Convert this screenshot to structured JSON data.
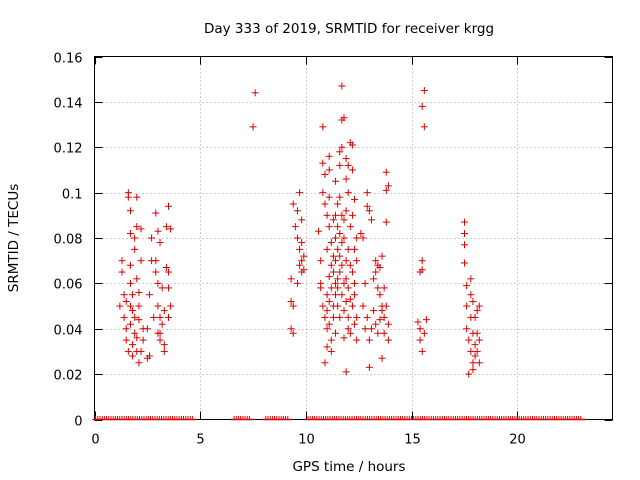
{
  "chart_data": {
    "type": "scatter",
    "title": "Day 333 of 2019, SRMTID for receiver krgg",
    "xlabel": "GPS time / hours",
    "ylabel": "SRMTID / TECUs",
    "xlim": [
      0,
      24.5
    ],
    "ylim": [
      0,
      0.16
    ],
    "grid": true,
    "marker": "+",
    "marker_color": "#dd0000",
    "xticks": [
      0,
      5,
      10,
      15,
      20
    ],
    "xtick_labels": [
      "0",
      "5",
      "10",
      "15",
      "20"
    ],
    "yticks": [
      0,
      0.02,
      0.04,
      0.06,
      0.08,
      0.1,
      0.12,
      0.14,
      0.16
    ],
    "ytick_labels": [
      "0",
      "0.02",
      "0.04",
      "0.06",
      "0.08",
      "0.1",
      "0.12",
      "0.14",
      "0.16"
    ],
    "series": [
      {
        "name": "SRMTID",
        "points": [
          [
            1.2,
            0.05
          ],
          [
            1.3,
            0.07
          ],
          [
            1.3,
            0.065
          ],
          [
            1.4,
            0.055
          ],
          [
            1.4,
            0.045
          ],
          [
            1.5,
            0.052
          ],
          [
            1.5,
            0.04
          ],
          [
            1.5,
            0.035
          ],
          [
            1.6,
            0.03
          ],
          [
            1.6,
            0.1
          ],
          [
            1.6,
            0.098
          ],
          [
            1.7,
            0.092
          ],
          [
            1.7,
            0.082
          ],
          [
            1.7,
            0.068
          ],
          [
            1.7,
            0.06
          ],
          [
            1.7,
            0.05
          ],
          [
            1.7,
            0.042
          ],
          [
            1.8,
            0.033
          ],
          [
            1.8,
            0.028
          ],
          [
            1.8,
            0.055
          ],
          [
            1.8,
            0.048
          ],
          [
            1.9,
            0.045
          ],
          [
            1.9,
            0.038
          ],
          [
            1.9,
            0.075
          ],
          [
            1.9,
            0.08
          ],
          [
            2.0,
            0.03
          ],
          [
            2.0,
            0.036
          ],
          [
            2.0,
            0.098
          ],
          [
            2.0,
            0.085
          ],
          [
            2.0,
            0.062
          ],
          [
            2.1,
            0.044
          ],
          [
            2.1,
            0.05
          ],
          [
            2.1,
            0.056
          ],
          [
            2.1,
            0.025
          ],
          [
            2.2,
            0.03
          ],
          [
            2.2,
            0.084
          ],
          [
            2.2,
            0.07
          ],
          [
            2.3,
            0.035
          ],
          [
            2.3,
            0.04
          ],
          [
            2.5,
            0.027
          ],
          [
            2.5,
            0.04
          ],
          [
            2.6,
            0.028
          ],
          [
            2.6,
            0.055
          ],
          [
            2.7,
            0.08
          ],
          [
            2.7,
            0.07
          ],
          [
            2.8,
            0.045
          ],
          [
            2.9,
            0.091
          ],
          [
            2.9,
            0.07
          ],
          [
            2.9,
            0.065
          ],
          [
            3.0,
            0.083
          ],
          [
            3.0,
            0.06
          ],
          [
            3.0,
            0.05
          ],
          [
            3.0,
            0.038
          ],
          [
            3.1,
            0.038
          ],
          [
            3.1,
            0.035
          ],
          [
            3.1,
            0.045
          ],
          [
            3.1,
            0.078
          ],
          [
            3.2,
            0.058
          ],
          [
            3.2,
            0.042
          ],
          [
            3.3,
            0.033
          ],
          [
            3.3,
            0.03
          ],
          [
            3.3,
            0.048
          ],
          [
            3.4,
            0.085
          ],
          [
            3.4,
            0.067
          ],
          [
            3.5,
            0.094
          ],
          [
            3.5,
            0.065
          ],
          [
            3.5,
            0.058
          ],
          [
            3.5,
            0.045
          ],
          [
            3.6,
            0.084
          ],
          [
            3.6,
            0.05
          ],
          [
            7.5,
            0.129
          ],
          [
            7.6,
            0.144
          ],
          [
            9.3,
            0.062
          ],
          [
            9.3,
            0.052
          ],
          [
            9.3,
            0.04
          ],
          [
            9.4,
            0.095
          ],
          [
            9.4,
            0.05
          ],
          [
            9.4,
            0.038
          ],
          [
            9.5,
            0.085
          ],
          [
            9.6,
            0.092
          ],
          [
            9.6,
            0.08
          ],
          [
            9.6,
            0.06
          ],
          [
            9.7,
            0.1
          ],
          [
            9.7,
            0.075
          ],
          [
            9.7,
            0.068
          ],
          [
            9.8,
            0.088
          ],
          [
            9.8,
            0.078
          ],
          [
            9.8,
            0.07
          ],
          [
            9.8,
            0.065
          ],
          [
            9.9,
            0.072
          ],
          [
            9.9,
            0.066
          ],
          [
            10.6,
            0.083
          ],
          [
            10.7,
            0.07
          ],
          [
            10.7,
            0.06
          ],
          [
            10.7,
            0.058
          ],
          [
            10.8,
            0.113
          ],
          [
            10.8,
            0.129
          ],
          [
            10.8,
            0.1
          ],
          [
            10.8,
            0.05
          ],
          [
            10.9,
            0.108
          ],
          [
            10.9,
            0.095
          ],
          [
            10.9,
            0.025
          ],
          [
            10.9,
            0.045
          ],
          [
            11.0,
            0.09
          ],
          [
            11.0,
            0.075
          ],
          [
            11.0,
            0.055
          ],
          [
            11.0,
            0.048
          ],
          [
            11.0,
            0.032
          ],
          [
            11.0,
            0.04
          ],
          [
            11.1,
            0.116
          ],
          [
            11.1,
            0.11
          ],
          [
            11.1,
            0.098
          ],
          [
            11.1,
            0.085
          ],
          [
            11.1,
            0.063
          ],
          [
            11.1,
            0.052
          ],
          [
            11.1,
            0.042
          ],
          [
            11.2,
            0.078
          ],
          [
            11.2,
            0.068
          ],
          [
            11.2,
            0.035
          ],
          [
            11.2,
            0.03
          ],
          [
            11.2,
            0.058
          ],
          [
            11.3,
            0.088
          ],
          [
            11.3,
            0.072
          ],
          [
            11.3,
            0.065
          ],
          [
            11.3,
            0.05
          ],
          [
            11.3,
            0.045
          ],
          [
            11.4,
            0.105
          ],
          [
            11.4,
            0.09
          ],
          [
            11.4,
            0.08
          ],
          [
            11.4,
            0.07
          ],
          [
            11.4,
            0.06
          ],
          [
            11.4,
            0.055
          ],
          [
            11.4,
            0.038
          ],
          [
            11.5,
            0.095
          ],
          [
            11.5,
            0.085
          ],
          [
            11.5,
            0.075
          ],
          [
            11.5,
            0.062
          ],
          [
            11.5,
            0.058
          ],
          [
            11.5,
            0.05
          ],
          [
            11.6,
            0.118
          ],
          [
            11.6,
            0.112
          ],
          [
            11.6,
            0.098
          ],
          [
            11.6,
            0.082
          ],
          [
            11.6,
            0.072
          ],
          [
            11.6,
            0.065
          ],
          [
            11.6,
            0.045
          ],
          [
            11.7,
            0.132
          ],
          [
            11.7,
            0.147
          ],
          [
            11.7,
            0.12
          ],
          [
            11.7,
            0.09
          ],
          [
            11.7,
            0.078
          ],
          [
            11.7,
            0.068
          ],
          [
            11.7,
            0.055
          ],
          [
            11.8,
            0.133
          ],
          [
            11.8,
            0.088
          ],
          [
            11.8,
            0.08
          ],
          [
            11.8,
            0.06
          ],
          [
            11.8,
            0.048
          ],
          [
            11.8,
            0.036
          ],
          [
            11.9,
            0.115
          ],
          [
            11.9,
            0.106
          ],
          [
            11.9,
            0.092
          ],
          [
            11.9,
            0.07
          ],
          [
            11.9,
            0.062
          ],
          [
            11.9,
            0.052
          ],
          [
            11.9,
            0.021
          ],
          [
            12.0,
            0.112
          ],
          [
            12.0,
            0.1
          ],
          [
            12.0,
            0.075
          ],
          [
            12.0,
            0.058
          ],
          [
            12.0,
            0.045
          ],
          [
            12.0,
            0.04
          ],
          [
            12.1,
            0.122
          ],
          [
            12.1,
            0.085
          ],
          [
            12.1,
            0.068
          ],
          [
            12.1,
            0.053
          ],
          [
            12.1,
            0.038
          ],
          [
            12.2,
            0.121
          ],
          [
            12.2,
            0.11
          ],
          [
            12.2,
            0.09
          ],
          [
            12.2,
            0.065
          ],
          [
            12.2,
            0.05
          ],
          [
            12.3,
            0.097
          ],
          [
            12.3,
            0.075
          ],
          [
            12.3,
            0.06
          ],
          [
            12.3,
            0.055
          ],
          [
            12.3,
            0.042
          ],
          [
            12.4,
            0.08
          ],
          [
            12.4,
            0.07
          ],
          [
            12.4,
            0.045
          ],
          [
            12.4,
            0.035
          ],
          [
            12.6,
            0.082
          ],
          [
            12.7,
            0.08
          ],
          [
            12.7,
            0.05
          ],
          [
            12.8,
            0.06
          ],
          [
            12.8,
            0.04
          ],
          [
            12.9,
            0.1
          ],
          [
            12.9,
            0.094
          ],
          [
            12.9,
            0.045
          ],
          [
            13.0,
            0.092
          ],
          [
            13.0,
            0.035
          ],
          [
            13.0,
            0.023
          ],
          [
            13.1,
            0.088
          ],
          [
            13.1,
            0.04
          ],
          [
            13.2,
            0.062
          ],
          [
            13.2,
            0.048
          ],
          [
            13.3,
            0.07
          ],
          [
            13.3,
            0.065
          ],
          [
            13.3,
            0.042
          ],
          [
            13.4,
            0.068
          ],
          [
            13.4,
            0.058
          ],
          [
            13.4,
            0.038
          ],
          [
            13.5,
            0.067
          ],
          [
            13.5,
            0.055
          ],
          [
            13.5,
            0.044
          ],
          [
            13.6,
            0.072
          ],
          [
            13.6,
            0.05
          ],
          [
            13.6,
            0.048
          ],
          [
            13.6,
            0.027
          ],
          [
            13.7,
            0.058
          ],
          [
            13.7,
            0.045
          ],
          [
            13.7,
            0.038
          ],
          [
            13.8,
            0.109
          ],
          [
            13.8,
            0.101
          ],
          [
            13.8,
            0.087
          ],
          [
            13.8,
            0.05
          ],
          [
            13.9,
            0.103
          ],
          [
            13.9,
            0.042
          ],
          [
            13.9,
            0.035
          ],
          [
            15.3,
            0.043
          ],
          [
            15.4,
            0.04
          ],
          [
            15.4,
            0.035
          ],
          [
            15.4,
            0.065
          ],
          [
            15.5,
            0.07
          ],
          [
            15.5,
            0.066
          ],
          [
            15.5,
            0.138
          ],
          [
            15.5,
            0.03
          ],
          [
            15.6,
            0.145
          ],
          [
            15.6,
            0.129
          ],
          [
            15.6,
            0.038
          ],
          [
            15.7,
            0.044
          ],
          [
            17.5,
            0.087
          ],
          [
            17.5,
            0.082
          ],
          [
            17.5,
            0.077
          ],
          [
            17.5,
            0.069
          ],
          [
            17.6,
            0.059
          ],
          [
            17.6,
            0.05
          ],
          [
            17.6,
            0.04
          ],
          [
            17.7,
            0.035
          ],
          [
            17.7,
            0.02
          ],
          [
            17.8,
            0.062
          ],
          [
            17.8,
            0.055
          ],
          [
            17.8,
            0.045
          ],
          [
            17.8,
            0.03
          ],
          [
            17.9,
            0.052
          ],
          [
            17.9,
            0.038
          ],
          [
            17.9,
            0.025
          ],
          [
            17.9,
            0.022
          ],
          [
            18.0,
            0.045
          ],
          [
            18.0,
            0.033
          ],
          [
            18.0,
            0.028
          ],
          [
            18.1,
            0.048
          ],
          [
            18.1,
            0.038
          ],
          [
            18.1,
            0.03
          ],
          [
            18.2,
            0.05
          ],
          [
            18.2,
            0.035
          ],
          [
            18.2,
            0.025
          ]
        ]
      }
    ],
    "zero_line": {
      "y": 0,
      "segments": [
        [
          0.05,
          4.65
        ],
        [
          6.6,
          7.4
        ],
        [
          8.1,
          9.2
        ],
        [
          10.1,
          23.1
        ]
      ]
    }
  }
}
